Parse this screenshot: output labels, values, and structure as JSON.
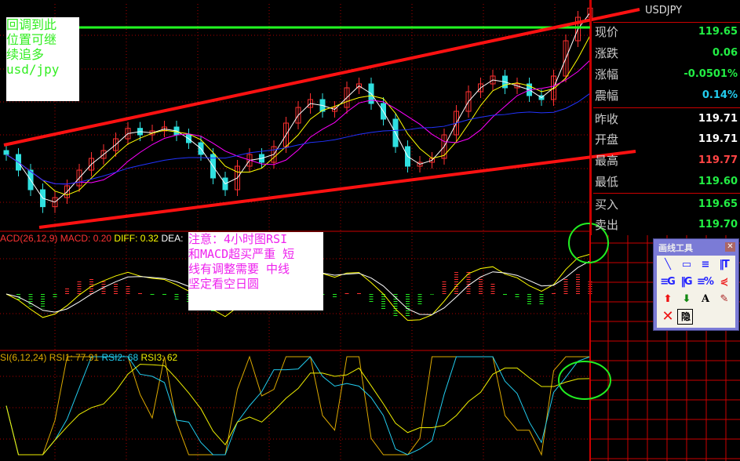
{
  "symbol": "USDJPY",
  "quote": [
    {
      "label": "现价",
      "value": "119.65",
      "color": "#22ee44"
    },
    {
      "label": "涨跌",
      "value": "0.06",
      "color": "#22ee44"
    },
    {
      "label": "涨幅",
      "value": "-0.0501%",
      "color": "#22ee44"
    },
    {
      "label": "震幅",
      "value": "0.14%",
      "color": "#22ccee"
    },
    {
      "label": "昨收",
      "value": "119.71",
      "color": "#ffffff"
    },
    {
      "label": "开盘",
      "value": "119.71",
      "color": "#ffffff"
    },
    {
      "label": "最高",
      "value": "119.77",
      "color": "#ff4444"
    },
    {
      "label": "最低",
      "value": "119.60",
      "color": "#22ee44"
    },
    {
      "label": "买入",
      "value": "119.65",
      "color": "#22ee44"
    },
    {
      "label": "卖出",
      "value": "119.70",
      "color": "#22ee44"
    }
  ],
  "notes": {
    "top_left": [
      "回调到此",
      "位置可继",
      "续追多",
      "usd/jpy"
    ],
    "macd": [
      "注意：4小时图RSI",
      "和MACD超买严重 短",
      "线有调整需要 中线",
      "坚定看空日圆"
    ]
  },
  "toolbox": {
    "title": "画线工具",
    "close": "✕",
    "hide": "隐",
    "text_tool": "A"
  },
  "chart_data": [
    {
      "type": "candlestick",
      "ylim": [
        118.0,
        119.8
      ],
      "grid": true,
      "closes": [
        118.63,
        118.51,
        118.36,
        118.23,
        118.3,
        118.39,
        118.51,
        118.6,
        118.66,
        118.75,
        118.83,
        118.78,
        118.81,
        118.84,
        118.78,
        118.72,
        118.63,
        118.45,
        118.36,
        118.54,
        118.63,
        118.57,
        118.69,
        118.87,
        118.99,
        119.05,
        118.96,
        118.99,
        119.14,
        119.17,
        119.02,
        118.9,
        118.69,
        118.54,
        118.57,
        118.6,
        118.78,
        118.96,
        119.11,
        119.17,
        119.23,
        119.14,
        119.17,
        119.08,
        119.05,
        119.23,
        119.5,
        119.68,
        119.75
      ],
      "ma_colors": {
        "ma5": "#ffffff",
        "ma10": "#ffff00",
        "ma20": "#ff00ff",
        "ma60": "#2233ff"
      }
    },
    {
      "type": "bar+line",
      "legend": {
        "name": "ACD(26,12,9)",
        "macd": "MACD: 0.20",
        "diff": "DIFF: 0.32",
        "dea": "DEA:"
      }
    },
    {
      "type": "line",
      "legend": {
        "name": "SI(6,12,24)",
        "rsi1": "RSI1: 77.91",
        "rsi2": "RSI2: 68",
        "rsi3": "RSI3: 62"
      }
    }
  ]
}
